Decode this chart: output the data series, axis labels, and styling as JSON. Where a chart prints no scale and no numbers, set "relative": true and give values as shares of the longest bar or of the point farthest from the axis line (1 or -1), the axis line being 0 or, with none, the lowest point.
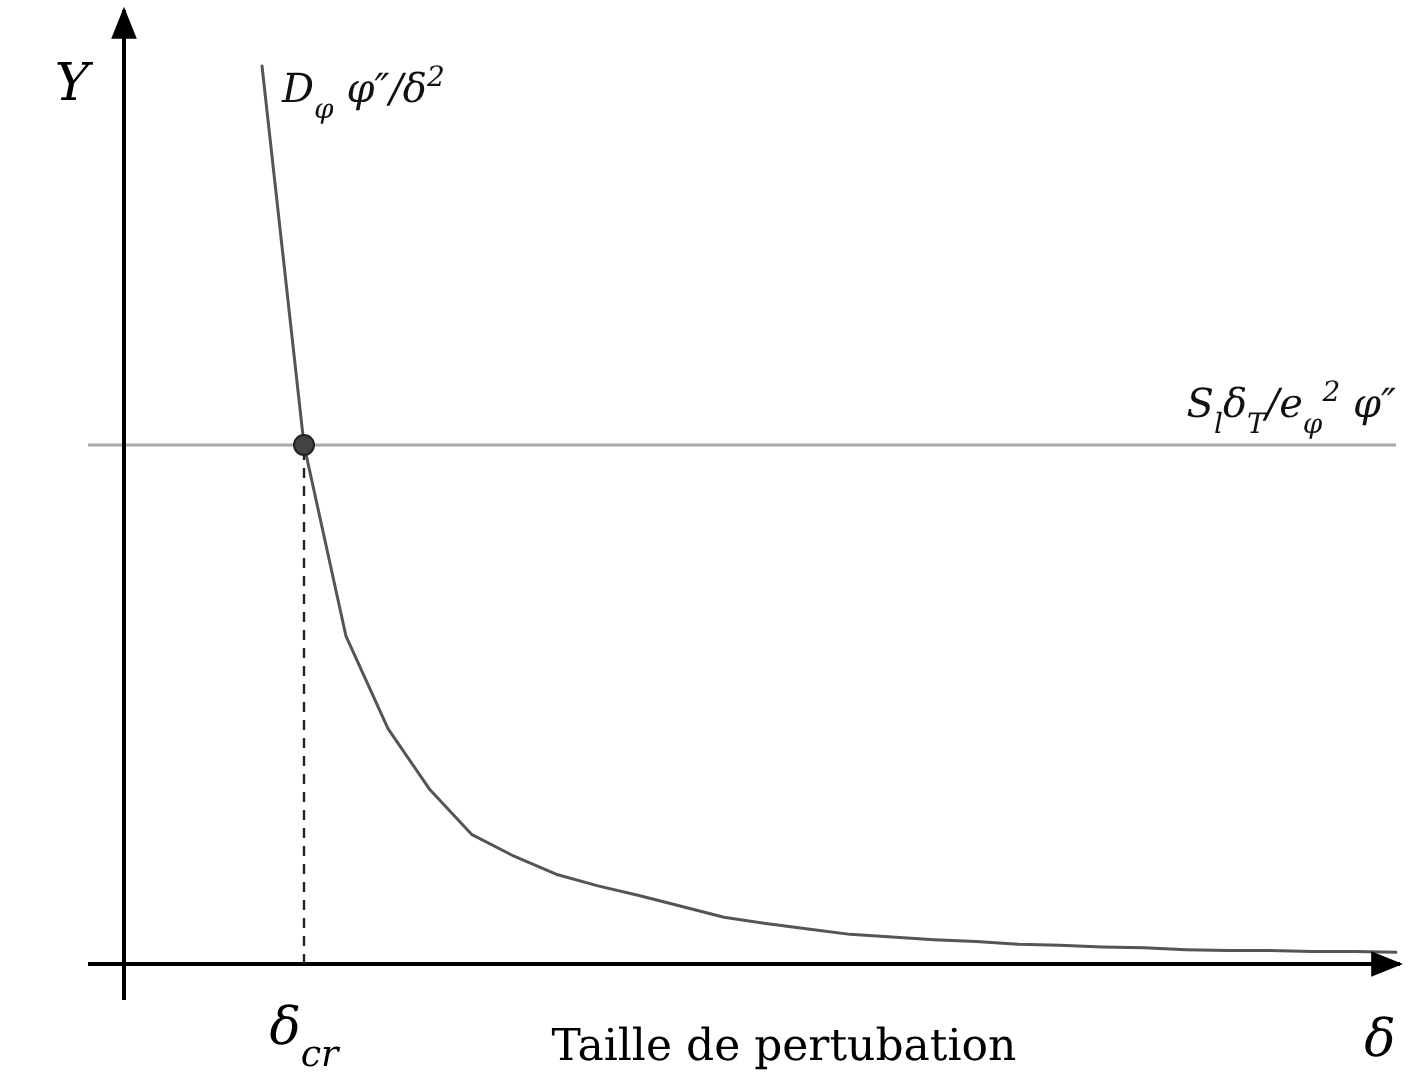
{
  "chart_data": {
    "type": "line",
    "relative": true,
    "ylabel": "Y",
    "xlabel": "Taille de pertubation",
    "categories": [
      null,
      null,
      null,
      null,
      null,
      null,
      null,
      null,
      null,
      null,
      null,
      null,
      null,
      null,
      null,
      null,
      null,
      null,
      null,
      null,
      null,
      null,
      null,
      null,
      null,
      null,
      null,
      null
    ],
    "series": [
      {
        "name": "D$_{φ}$ φ″/δ$^{2}$",
        "color": "#555555",
        "values": [
          1.0,
          0.578,
          0.365,
          0.262,
          0.194,
          0.144,
          0.12,
          0.1,
          0.087,
          0.076,
          0.064,
          0.052,
          0.045,
          0.039,
          0.033,
          0.03,
          0.027,
          0.025,
          0.022,
          0.021,
          0.019,
          0.018,
          0.016,
          0.015,
          0.015,
          0.014,
          0.014,
          0.013
        ]
      }
    ],
    "ref_lines": [
      {
        "axis": "y",
        "value": 0.578,
        "label": "S$_{l}$δ$_{T}$/e$_{φ}$$^{2}$ φ″",
        "color": "#aaaaaa"
      }
    ],
    "annotations": [
      "δ",
      "δ$_{cr}$"
    ]
  }
}
